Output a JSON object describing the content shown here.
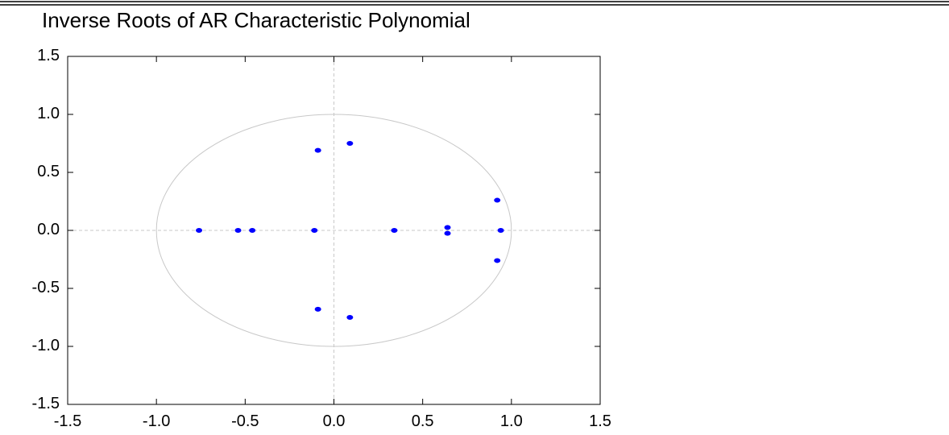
{
  "chart_data": {
    "type": "scatter",
    "title": "Inverse Roots of AR Characteristic Polynomial",
    "xlim": [
      -1.5,
      1.5
    ],
    "ylim": [
      -1.5,
      1.5
    ],
    "x_ticks": [
      -1.5,
      -1.0,
      -0.5,
      0.0,
      0.5,
      1.0,
      1.5
    ],
    "y_ticks": [
      -1.5,
      -1.0,
      -0.5,
      0.0,
      0.5,
      1.0,
      1.5
    ],
    "x_tick_labels": [
      "-1.5",
      "-1.0",
      "-0.5",
      "0.0",
      "0.5",
      "1.0",
      "1.5"
    ],
    "y_tick_labels": [
      "-1.5",
      "-1.0",
      "-0.5",
      "0.0",
      "0.5",
      "1.0",
      "1.5"
    ],
    "unit_circle": true,
    "grid": false,
    "reference_lines": "dashed lines at x=0 and y=0",
    "marker_color": "#0000ff",
    "circle_color": "#c8c8c8",
    "points": [
      {
        "x": -0.76,
        "y": 0.0
      },
      {
        "x": -0.54,
        "y": 0.0
      },
      {
        "x": -0.46,
        "y": 0.0
      },
      {
        "x": -0.11,
        "y": 0.0
      },
      {
        "x": 0.34,
        "y": 0.0
      },
      {
        "x": 0.64,
        "y": 0.025
      },
      {
        "x": 0.64,
        "y": -0.025
      },
      {
        "x": 0.94,
        "y": 0.0
      },
      {
        "x": 0.92,
        "y": 0.26
      },
      {
        "x": 0.92,
        "y": -0.26
      },
      {
        "x": -0.09,
        "y": 0.69
      },
      {
        "x": -0.09,
        "y": -0.68
      },
      {
        "x": 0.09,
        "y": 0.75
      },
      {
        "x": 0.09,
        "y": -0.75
      }
    ]
  }
}
